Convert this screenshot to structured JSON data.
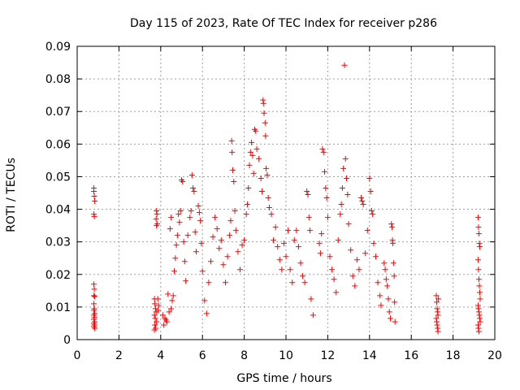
{
  "chart_data": {
    "type": "scatter",
    "title": "Day 115 of 2023, Rate Of TEC Index for receiver p286",
    "xlabel": "GPS time / hours",
    "ylabel": "ROTI / TECUs",
    "xlim": [
      0,
      20
    ],
    "ylim": [
      0,
      0.09
    ],
    "xticks": [
      "0",
      "2",
      "4",
      "6",
      "8",
      "10",
      "12",
      "14",
      "16",
      "18",
      "20"
    ],
    "yticks": [
      "0",
      "0.01",
      "0.02",
      "0.03",
      "0.04",
      "0.05",
      "0.06",
      "0.07",
      "0.08",
      "0.09"
    ],
    "grid": true,
    "marker": "plus",
    "color": "#ff0000",
    "series": [
      {
        "points": [
          [
            0.8,
            0.0465
          ],
          [
            0.8,
            0.0455
          ],
          [
            0.82,
            0.044
          ],
          [
            0.84,
            0.0425
          ],
          [
            0.8,
            0.0385
          ],
          [
            0.82,
            0.0378
          ],
          [
            0.8,
            0.017
          ],
          [
            0.82,
            0.0155
          ],
          [
            0.8,
            0.0135
          ],
          [
            0.84,
            0.0132
          ],
          [
            0.8,
            0.011
          ],
          [
            0.82,
            0.0095
          ],
          [
            0.8,
            0.009
          ],
          [
            0.84,
            0.008
          ],
          [
            0.8,
            0.0075
          ],
          [
            0.82,
            0.0068
          ],
          [
            0.8,
            0.0062
          ],
          [
            0.84,
            0.0055
          ],
          [
            0.8,
            0.005
          ],
          [
            0.82,
            0.0045
          ],
          [
            0.8,
            0.004
          ],
          [
            0.84,
            0.0035
          ],
          [
            3.7,
            0.0125
          ],
          [
            3.72,
            0.011
          ],
          [
            3.75,
            0.0095
          ],
          [
            3.78,
            0.0085
          ],
          [
            3.7,
            0.0075
          ],
          [
            3.74,
            0.0065
          ],
          [
            3.8,
            0.0055
          ],
          [
            3.72,
            0.0045
          ],
          [
            3.76,
            0.0035
          ],
          [
            3.7,
            0.003
          ],
          [
            3.8,
            0.0395
          ],
          [
            3.82,
            0.0385
          ],
          [
            3.78,
            0.037
          ],
          [
            3.84,
            0.0355
          ],
          [
            3.8,
            0.035
          ],
          [
            3.86,
            0.0125
          ],
          [
            3.9,
            0.0105
          ],
          [
            3.88,
            0.009
          ],
          [
            4.1,
            0.0075
          ],
          [
            4.2,
            0.0065
          ],
          [
            4.3,
            0.0055
          ],
          [
            4.4,
            0.0085
          ],
          [
            4.5,
            0.0095
          ],
          [
            4.55,
            0.012
          ],
          [
            4.6,
            0.0135
          ],
          [
            4.5,
            0.0375
          ],
          [
            4.45,
            0.034
          ],
          [
            4.35,
            0.014
          ],
          [
            4.25,
            0.006
          ],
          [
            4.15,
            0.0045
          ],
          [
            4.65,
            0.021
          ],
          [
            4.7,
            0.025
          ],
          [
            4.75,
            0.029
          ],
          [
            4.8,
            0.032
          ],
          [
            4.85,
            0.0385
          ],
          [
            4.9,
            0.036
          ],
          [
            4.95,
            0.0395
          ],
          [
            5.0,
            0.049
          ],
          [
            5.05,
            0.0485
          ],
          [
            5.1,
            0.03
          ],
          [
            5.15,
            0.024
          ],
          [
            5.2,
            0.018
          ],
          [
            5.3,
            0.032
          ],
          [
            5.4,
            0.0375
          ],
          [
            5.45,
            0.0395
          ],
          [
            5.5,
            0.0505
          ],
          [
            5.55,
            0.0465
          ],
          [
            5.6,
            0.0455
          ],
          [
            5.65,
            0.033
          ],
          [
            5.7,
            0.027
          ],
          [
            5.8,
            0.041
          ],
          [
            5.85,
            0.039
          ],
          [
            5.9,
            0.0365
          ],
          [
            5.95,
            0.0295
          ],
          [
            6.0,
            0.021
          ],
          [
            6.1,
            0.012
          ],
          [
            6.2,
            0.008
          ],
          [
            6.3,
            0.0175
          ],
          [
            6.4,
            0.024
          ],
          [
            6.5,
            0.0315
          ],
          [
            6.6,
            0.0375
          ],
          [
            6.7,
            0.034
          ],
          [
            6.8,
            0.028
          ],
          [
            6.9,
            0.0305
          ],
          [
            7.0,
            0.023
          ],
          [
            7.1,
            0.0175
          ],
          [
            7.2,
            0.0255
          ],
          [
            7.3,
            0.032
          ],
          [
            7.35,
            0.0365
          ],
          [
            7.4,
            0.061
          ],
          [
            7.42,
            0.0575
          ],
          [
            7.45,
            0.052
          ],
          [
            7.5,
            0.0485
          ],
          [
            7.55,
            0.0395
          ],
          [
            7.6,
            0.0335
          ],
          [
            7.7,
            0.027
          ],
          [
            7.8,
            0.0215
          ],
          [
            7.9,
            0.029
          ],
          [
            8.0,
            0.0305
          ],
          [
            8.1,
            0.0385
          ],
          [
            8.15,
            0.0415
          ],
          [
            8.2,
            0.0465
          ],
          [
            8.25,
            0.0535
          ],
          [
            8.3,
            0.0575
          ],
          [
            8.35,
            0.0605
          ],
          [
            8.4,
            0.0565
          ],
          [
            8.45,
            0.051
          ],
          [
            8.5,
            0.0645
          ],
          [
            8.55,
            0.064
          ],
          [
            8.6,
            0.0585
          ],
          [
            8.7,
            0.0555
          ],
          [
            8.8,
            0.0495
          ],
          [
            8.85,
            0.0455
          ],
          [
            8.9,
            0.0735
          ],
          [
            8.92,
            0.0725
          ],
          [
            8.95,
            0.0695
          ],
          [
            9.0,
            0.0665
          ],
          [
            9.02,
            0.0625
          ],
          [
            9.05,
            0.0525
          ],
          [
            9.1,
            0.0505
          ],
          [
            9.15,
            0.0435
          ],
          [
            9.2,
            0.0405
          ],
          [
            9.3,
            0.0385
          ],
          [
            9.4,
            0.0305
          ],
          [
            9.5,
            0.0345
          ],
          [
            9.6,
            0.0285
          ],
          [
            9.7,
            0.0245
          ],
          [
            9.8,
            0.0215
          ],
          [
            9.9,
            0.0295
          ],
          [
            10.0,
            0.0255
          ],
          [
            10.1,
            0.0335
          ],
          [
            10.2,
            0.0215
          ],
          [
            10.3,
            0.0175
          ],
          [
            10.4,
            0.0305
          ],
          [
            10.5,
            0.0335
          ],
          [
            10.6,
            0.0285
          ],
          [
            10.7,
            0.0235
          ],
          [
            10.8,
            0.0195
          ],
          [
            10.9,
            0.0175
          ],
          [
            11.0,
            0.0455
          ],
          [
            11.05,
            0.0445
          ],
          [
            11.1,
            0.0375
          ],
          [
            11.15,
            0.0335
          ],
          [
            11.2,
            0.0125
          ],
          [
            11.3,
            0.0075
          ],
          [
            11.6,
            0.0295
          ],
          [
            11.65,
            0.0265
          ],
          [
            11.7,
            0.0325
          ],
          [
            11.75,
            0.0585
          ],
          [
            11.8,
            0.0575
          ],
          [
            11.85,
            0.0515
          ],
          [
            11.9,
            0.0465
          ],
          [
            11.95,
            0.0435
          ],
          [
            12.0,
            0.0375
          ],
          [
            12.1,
            0.0255
          ],
          [
            12.2,
            0.0215
          ],
          [
            12.3,
            0.0185
          ],
          [
            12.4,
            0.0145
          ],
          [
            12.5,
            0.0305
          ],
          [
            12.6,
            0.0385
          ],
          [
            12.65,
            0.0415
          ],
          [
            12.7,
            0.0465
          ],
          [
            12.75,
            0.0525
          ],
          [
            12.8,
            0.0842
          ],
          [
            12.85,
            0.0555
          ],
          [
            12.9,
            0.0495
          ],
          [
            12.95,
            0.0445
          ],
          [
            13.0,
            0.0355
          ],
          [
            13.1,
            0.0275
          ],
          [
            13.2,
            0.0195
          ],
          [
            13.3,
            0.0165
          ],
          [
            13.4,
            0.0245
          ],
          [
            13.5,
            0.0215
          ],
          [
            13.6,
            0.0435
          ],
          [
            13.65,
            0.0425
          ],
          [
            13.7,
            0.0415
          ],
          [
            13.8,
            0.0265
          ],
          [
            13.9,
            0.0335
          ],
          [
            14.0,
            0.0495
          ],
          [
            14.05,
            0.0455
          ],
          [
            14.1,
            0.0395
          ],
          [
            14.15,
            0.0385
          ],
          [
            14.2,
            0.0295
          ],
          [
            14.3,
            0.0255
          ],
          [
            14.4,
            0.0175
          ],
          [
            14.5,
            0.0135
          ],
          [
            14.55,
            0.0105
          ],
          [
            14.7,
            0.0235
          ],
          [
            14.75,
            0.0215
          ],
          [
            14.8,
            0.0185
          ],
          [
            14.85,
            0.0165
          ],
          [
            14.9,
            0.0125
          ],
          [
            14.95,
            0.0085
          ],
          [
            15.0,
            0.0065
          ],
          [
            15.05,
            0.0355
          ],
          [
            15.08,
            0.0345
          ],
          [
            15.1,
            0.0305
          ],
          [
            15.12,
            0.0295
          ],
          [
            15.15,
            0.0235
          ],
          [
            15.18,
            0.0195
          ],
          [
            15.2,
            0.0115
          ],
          [
            15.22,
            0.0055
          ],
          [
            17.2,
            0.0135
          ],
          [
            17.22,
            0.0115
          ],
          [
            17.24,
            0.0095
          ],
          [
            17.26,
            0.0085
          ],
          [
            17.28,
            0.0075
          ],
          [
            17.2,
            0.0065
          ],
          [
            17.22,
            0.0055
          ],
          [
            17.24,
            0.0045
          ],
          [
            17.26,
            0.0035
          ],
          [
            17.28,
            0.0025
          ],
          [
            17.3,
            0.0125
          ],
          [
            19.2,
            0.0375
          ],
          [
            19.22,
            0.0345
          ],
          [
            19.24,
            0.0325
          ],
          [
            19.26,
            0.0295
          ],
          [
            19.28,
            0.0285
          ],
          [
            19.2,
            0.0245
          ],
          [
            19.22,
            0.0215
          ],
          [
            19.24,
            0.0185
          ],
          [
            19.26,
            0.0165
          ],
          [
            19.28,
            0.0145
          ],
          [
            19.3,
            0.0125
          ],
          [
            19.2,
            0.0105
          ],
          [
            19.22,
            0.0095
          ],
          [
            19.24,
            0.0085
          ],
          [
            19.26,
            0.0075
          ],
          [
            19.28,
            0.0065
          ],
          [
            19.3,
            0.0055
          ],
          [
            19.2,
            0.0045
          ],
          [
            19.22,
            0.0035
          ],
          [
            19.24,
            0.0025
          ]
        ]
      }
    ]
  }
}
